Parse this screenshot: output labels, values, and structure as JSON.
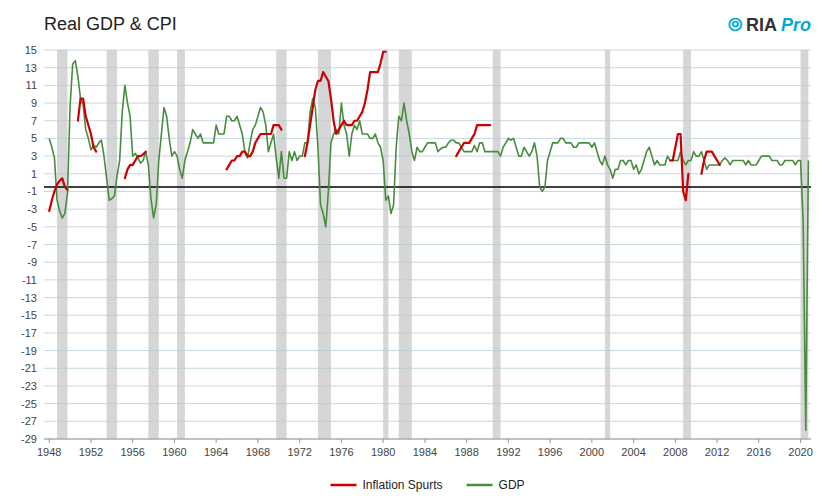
{
  "chart_data": {
    "type": "line",
    "title": "Real GDP & CPI",
    "annotations": [
      {
        "text": "⦾",
        "color": "#00aacc"
      },
      {
        "text": "RIA",
        "color": "#333333"
      },
      {
        "text": "Pro",
        "color": "#00aacc"
      }
    ],
    "xlim": [
      1947.5,
      2021
    ],
    "xticks": [
      1948,
      1952,
      1956,
      1960,
      1964,
      1968,
      1972,
      1976,
      1980,
      1984,
      1988,
      1992,
      1996,
      2000,
      2004,
      2008,
      2012,
      2016,
      2020
    ],
    "ylim": [
      -29,
      15
    ],
    "yticks": [
      -29,
      -27,
      -25,
      -23,
      -21,
      -19,
      -17,
      -15,
      -13,
      -11,
      -9,
      -7,
      -5,
      -3,
      -1,
      1,
      3,
      5,
      7,
      9,
      11,
      13,
      15
    ],
    "grid": true,
    "legend": "bottom",
    "reference_line": -0.5,
    "recession_shading": [
      [
        1948.75,
        1949.75
      ],
      [
        1953.5,
        1954.5
      ],
      [
        1957.5,
        1958.5
      ],
      [
        1960.25,
        1961.0
      ],
      [
        1969.75,
        1970.75
      ],
      [
        1973.75,
        1975.0
      ],
      [
        1980.0,
        1980.5
      ],
      [
        1981.5,
        1982.75
      ],
      [
        1990.5,
        1991.25
      ],
      [
        2001.25,
        2001.75
      ],
      [
        2008.75,
        2009.5
      ],
      [
        2020.0,
        2020.75
      ]
    ],
    "series": [
      {
        "name": "Inflation Spurts",
        "color": "#cc0000",
        "segments": [
          {
            "x": [
              1948.0,
              1948.25,
              1948.5,
              1948.75,
              1949.0,
              1949.25,
              1949.5,
              1949.75
            ],
            "values": [
              -3.2,
              -2.0,
              -1.0,
              -0.2,
              0.2,
              0.5,
              -0.5,
              -0.8
            ]
          },
          {
            "x": [
              1950.75,
              1951.0,
              1951.25,
              1951.5,
              1951.75,
              1952.0,
              1952.25,
              1952.5
            ],
            "values": [
              7.0,
              9.5,
              9.5,
              7.5,
              6.5,
              5.5,
              4.0,
              3.5
            ]
          },
          {
            "x": [
              1955.25,
              1955.5,
              1955.75,
              1956.0,
              1956.25,
              1956.5,
              1956.75,
              1957.0,
              1957.25
            ],
            "values": [
              0.5,
              1.5,
              2.0,
              2.0,
              2.5,
              3.0,
              3.0,
              3.2,
              3.5
            ]
          },
          {
            "x": [
              1965.0,
              1965.25,
              1965.5,
              1965.75,
              1966.0,
              1966.25,
              1966.5,
              1966.75,
              1967.0,
              1967.25,
              1967.5,
              1967.75,
              1968.0,
              1968.25,
              1968.5,
              1968.75,
              1969.0,
              1969.25,
              1969.5,
              1969.75,
              1970.0,
              1970.25
            ],
            "values": [
              1.5,
              2.0,
              2.5,
              2.5,
              3.0,
              3.0,
              3.5,
              3.5,
              3.0,
              3.0,
              3.5,
              4.5,
              5.0,
              5.5,
              5.5,
              5.5,
              5.5,
              5.5,
              6.5,
              6.5,
              6.5,
              6.0
            ]
          },
          {
            "x": [
              1972.5,
              1972.75,
              1973.0,
              1973.25,
              1973.5,
              1973.75,
              1974.0,
              1974.25,
              1974.5,
              1974.75,
              1975.0,
              1975.25,
              1975.5,
              1975.75,
              1976.0,
              1976.25,
              1976.5,
              1976.75,
              1977.0,
              1977.25,
              1977.5,
              1977.75,
              1978.0,
              1978.25,
              1978.5,
              1978.75,
              1979.0,
              1979.25,
              1979.5,
              1979.75,
              1980.0,
              1980.25
            ],
            "values": [
              3.0,
              4.5,
              6.5,
              8.5,
              10.5,
              11.5,
              11.5,
              12.5,
              12.0,
              11.5,
              9.5,
              7.0,
              5.5,
              6.0,
              6.5,
              7.0,
              6.5,
              6.5,
              6.5,
              7.0,
              7.0,
              7.5,
              8.0,
              9.0,
              10.5,
              12.5,
              12.5,
              12.5,
              12.5,
              13.5,
              14.8,
              14.8
            ]
          },
          {
            "x": [
              1987.0,
              1987.25,
              1987.5,
              1987.75,
              1988.0,
              1988.25,
              1988.5,
              1988.75,
              1989.0,
              1989.25,
              1989.5,
              1989.75,
              1990.0,
              1990.25
            ],
            "values": [
              3.0,
              3.5,
              4.0,
              4.5,
              4.5,
              4.5,
              5.0,
              5.5,
              6.5,
              6.5,
              6.5,
              6.5,
              6.5,
              6.5
            ]
          },
          {
            "x": [
              2007.5,
              2007.75,
              2008.0,
              2008.25,
              2008.5,
              2008.75,
              2009.0,
              2009.25
            ],
            "values": [
              2.5,
              2.5,
              4.0,
              5.5,
              5.5,
              -1.0,
              -2.0,
              1.0
            ]
          },
          {
            "x": [
              2010.5,
              2010.75,
              2011.0,
              2011.25,
              2011.5,
              2011.75,
              2012.0,
              2012.25
            ],
            "values": [
              1.0,
              2.5,
              3.5,
              3.5,
              3.5,
              3.0,
              2.5,
              2.0
            ]
          }
        ]
      },
      {
        "name": "GDP",
        "color": "#4a8c3f",
        "x": [
          1948.0,
          1948.25,
          1948.5,
          1948.75,
          1949.0,
          1949.25,
          1949.5,
          1949.75,
          1950.0,
          1950.25,
          1950.5,
          1950.75,
          1951.0,
          1951.25,
          1951.5,
          1951.75,
          1952.0,
          1952.25,
          1952.5,
          1952.75,
          1953.0,
          1953.25,
          1953.5,
          1953.75,
          1954.0,
          1954.25,
          1954.5,
          1954.75,
          1955.0,
          1955.25,
          1955.5,
          1955.75,
          1956.0,
          1956.25,
          1956.5,
          1956.75,
          1957.0,
          1957.25,
          1957.5,
          1957.75,
          1958.0,
          1958.25,
          1958.5,
          1958.75,
          1959.0,
          1959.25,
          1959.5,
          1959.75,
          1960.0,
          1960.25,
          1960.5,
          1960.75,
          1961.0,
          1961.25,
          1961.5,
          1961.75,
          1962.0,
          1962.25,
          1962.5,
          1962.75,
          1963.0,
          1963.25,
          1963.5,
          1963.75,
          1964.0,
          1964.25,
          1964.5,
          1964.75,
          1965.0,
          1965.25,
          1965.5,
          1965.75,
          1966.0,
          1966.25,
          1966.5,
          1966.75,
          1967.0,
          1967.25,
          1967.5,
          1967.75,
          1968.0,
          1968.25,
          1968.5,
          1968.75,
          1969.0,
          1969.25,
          1969.5,
          1969.75,
          1970.0,
          1970.25,
          1970.5,
          1970.75,
          1971.0,
          1971.25,
          1971.5,
          1971.75,
          1972.0,
          1972.25,
          1972.5,
          1972.75,
          1973.0,
          1973.25,
          1973.5,
          1973.75,
          1974.0,
          1974.25,
          1974.5,
          1974.75,
          1975.0,
          1975.25,
          1975.5,
          1975.75,
          1976.0,
          1976.25,
          1976.5,
          1976.75,
          1977.0,
          1977.25,
          1977.5,
          1977.75,
          1978.0,
          1978.25,
          1978.5,
          1978.75,
          1979.0,
          1979.25,
          1979.5,
          1979.75,
          1980.0,
          1980.25,
          1980.5,
          1980.75,
          1981.0,
          1981.25,
          1981.5,
          1981.75,
          1982.0,
          1982.25,
          1982.5,
          1982.75,
          1983.0,
          1983.25,
          1983.5,
          1983.75,
          1984.0,
          1984.25,
          1984.5,
          1984.75,
          1985.0,
          1985.25,
          1985.5,
          1985.75,
          1986.0,
          1986.25,
          1986.5,
          1986.75,
          1987.0,
          1987.25,
          1987.5,
          1987.75,
          1988.0,
          1988.25,
          1988.5,
          1988.75,
          1989.0,
          1989.25,
          1989.5,
          1989.75,
          1990.0,
          1990.25,
          1990.5,
          1990.75,
          1991.0,
          1991.25,
          1991.5,
          1991.75,
          1992.0,
          1992.25,
          1992.5,
          1992.75,
          1993.0,
          1993.25,
          1993.5,
          1993.75,
          1994.0,
          1994.25,
          1994.5,
          1994.75,
          1995.0,
          1995.25,
          1995.5,
          1995.75,
          1996.0,
          1996.25,
          1996.5,
          1996.75,
          1997.0,
          1997.25,
          1997.5,
          1997.75,
          1998.0,
          1998.25,
          1998.5,
          1998.75,
          1999.0,
          1999.25,
          1999.5,
          1999.75,
          2000.0,
          2000.25,
          2000.5,
          2000.75,
          2001.0,
          2001.25,
          2001.5,
          2001.75,
          2002.0,
          2002.25,
          2002.5,
          2002.75,
          2003.0,
          2003.25,
          2003.5,
          2003.75,
          2004.0,
          2004.25,
          2004.5,
          2004.75,
          2005.0,
          2005.25,
          2005.5,
          2005.75,
          2006.0,
          2006.25,
          2006.5,
          2006.75,
          2007.0,
          2007.25,
          2007.5,
          2007.75,
          2008.0,
          2008.25,
          2008.5,
          2008.75,
          2009.0,
          2009.25,
          2009.5,
          2009.75,
          2010.0,
          2010.25,
          2010.5,
          2010.75,
          2011.0,
          2011.25,
          2011.5,
          2011.75,
          2012.0,
          2012.25,
          2012.5,
          2012.75,
          2013.0,
          2013.25,
          2013.5,
          2013.75,
          2014.0,
          2014.25,
          2014.5,
          2014.75,
          2015.0,
          2015.25,
          2015.5,
          2015.75,
          2016.0,
          2016.25,
          2016.5,
          2016.75,
          2017.0,
          2017.25,
          2017.5,
          2017.75,
          2018.0,
          2018.25,
          2018.5,
          2018.75,
          2019.0,
          2019.25,
          2019.5,
          2019.75,
          2020.0,
          2020.25,
          2020.5,
          2020.75
        ],
        "values": [
          5.0,
          4.0,
          2.8,
          -2.0,
          -3.2,
          -4.0,
          -3.5,
          -1.2,
          8.7,
          13.4,
          13.8,
          12.0,
          9.5,
          8.8,
          6.0,
          5.0,
          3.7,
          4.2,
          4.0,
          4.5,
          4.8,
          3.0,
          0.5,
          -2.0,
          -1.8,
          -1.5,
          0.8,
          2.5,
          8.0,
          11.0,
          9.0,
          7.5,
          3.0,
          3.3,
          2.8,
          2.2,
          2.5,
          3.5,
          2.0,
          -1.8,
          -4.0,
          -2.5,
          2.5,
          5.5,
          8.5,
          7.5,
          5.0,
          3.0,
          3.5,
          3.0,
          1.5,
          0.5,
          2.5,
          3.5,
          4.5,
          6.0,
          5.5,
          5.0,
          5.5,
          4.5,
          4.5,
          4.5,
          4.5,
          4.5,
          6.5,
          5.5,
          5.5,
          5.5,
          7.5,
          7.5,
          7.0,
          7.0,
          7.5,
          6.5,
          5.5,
          3.5,
          2.8,
          4.5,
          6.0,
          6.5,
          7.5,
          8.5,
          8.0,
          6.5,
          3.5,
          4.5,
          5.5,
          2.8,
          0.5,
          3.5,
          0.5,
          0.5,
          3.5,
          2.5,
          3.5,
          2.5,
          3.0,
          3.0,
          4.5,
          4.5,
          8.0,
          9.5,
          8.5,
          4.0,
          -2.5,
          -3.5,
          -5.0,
          -1.0,
          4.5,
          5.5,
          6.0,
          5.5,
          9.0,
          6.5,
          5.5,
          3.0,
          5.5,
          6.5,
          6.0,
          7.0,
          5.5,
          5.5,
          5.5,
          5.0,
          5.0,
          5.5,
          4.5,
          4.0,
          2.5,
          -2.0,
          -1.5,
          -3.5,
          -2.5,
          4.0,
          7.5,
          7.0,
          9.0,
          7.0,
          5.5,
          3.5,
          2.5,
          4.0,
          3.5,
          3.5,
          4.0,
          4.5,
          4.5,
          4.5,
          4.5,
          3.5,
          3.8,
          4.0,
          4.0,
          4.5,
          4.8,
          4.8,
          4.5,
          4.5,
          4.0,
          3.5,
          3.5,
          3.5,
          3.5,
          4.2,
          3.5,
          4.5,
          4.5,
          3.5,
          3.5,
          3.5,
          3.5,
          3.5,
          3.5,
          3.0,
          4.0,
          4.5,
          5.0,
          4.8,
          5.0,
          4.0,
          3.0,
          3.0,
          4.0,
          3.5,
          3.0,
          3.5,
          4.5,
          3.0,
          -0.5,
          -1.0,
          -0.5,
          2.5,
          3.5,
          4.5,
          4.5,
          4.5,
          5.0,
          5.0,
          4.5,
          4.5,
          4.5,
          4.0,
          4.0,
          4.5,
          4.5,
          4.5,
          4.5,
          4.5,
          4.0,
          4.5,
          3.5,
          2.5,
          2.0,
          3.0,
          2.0,
          1.5,
          0.5,
          1.5,
          1.5,
          2.5,
          2.5,
          2.0,
          2.5,
          2.5,
          1.5,
          2.0,
          1.0,
          1.5,
          2.5,
          3.5,
          4.0,
          3.0,
          2.0,
          2.5,
          2.0,
          2.0,
          2.0,
          3.0,
          2.5,
          2.5,
          2.5,
          2.5,
          3.5,
          2.5,
          2.0,
          2.5,
          2.5,
          3.5,
          3.0,
          3.0,
          3.5,
          2.5,
          1.5,
          2.0,
          2.0,
          2.0,
          2.0,
          2.0,
          2.5,
          2.8,
          2.5,
          2.0,
          2.5,
          2.5,
          2.5,
          2.5,
          2.5,
          2.0,
          2.5,
          2.0,
          2.0,
          2.0,
          2.5,
          3.0,
          3.0,
          3.0,
          3.0,
          2.5,
          2.5,
          2.5,
          2.0,
          2.0,
          2.5,
          2.5,
          2.5,
          2.5,
          2.0,
          2.5,
          2.5,
          -4.5,
          -28.0,
          2.5
        ]
      }
    ]
  }
}
